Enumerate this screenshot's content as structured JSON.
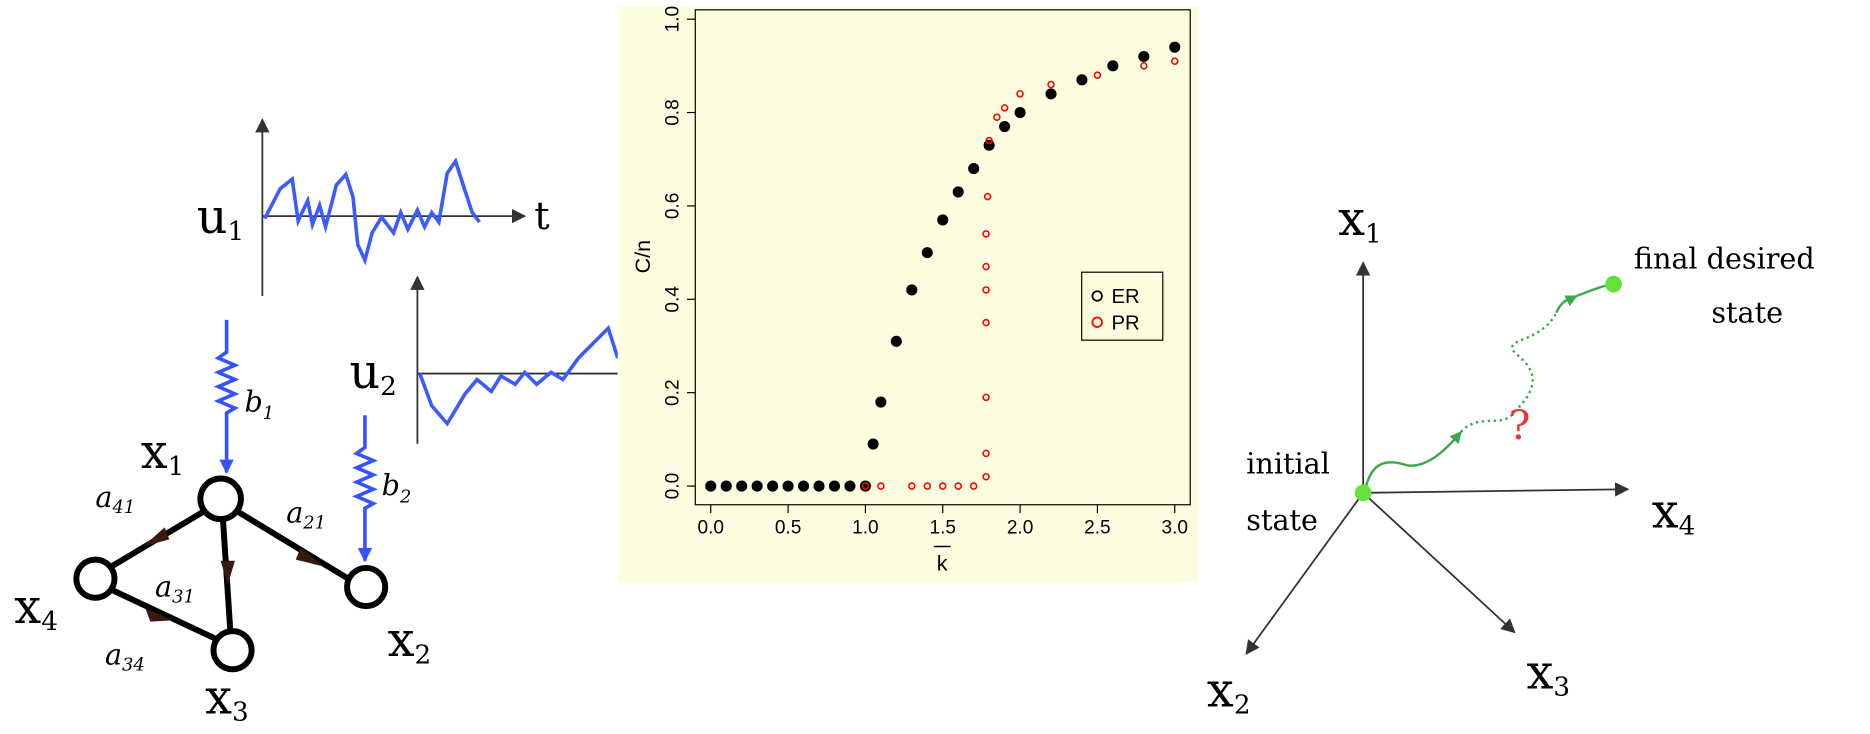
{
  "left_diagram": {
    "inputs": [
      {
        "var": "u",
        "sub": "1"
      },
      {
        "var": "u",
        "sub": "2"
      }
    ],
    "time_axis": "t",
    "couplings": [
      {
        "var": "b",
        "sub": "1"
      },
      {
        "var": "b",
        "sub": "2"
      }
    ],
    "nodes": [
      {
        "var": "x",
        "sub": "1"
      },
      {
        "var": "x",
        "sub": "2"
      },
      {
        "var": "x",
        "sub": "3"
      },
      {
        "var": "x",
        "sub": "4"
      }
    ],
    "edges": [
      {
        "var": "a",
        "sub": "41"
      },
      {
        "var": "a",
        "sub": "21"
      },
      {
        "var": "a",
        "sub": "31"
      },
      {
        "var": "a",
        "sub": "34"
      }
    ]
  },
  "chart_data": {
    "type": "scatter",
    "x_label": "k",
    "y_label": "C/n",
    "xlim": [
      -0.1,
      3.1
    ],
    "ylim": [
      -0.04,
      1.02
    ],
    "xticks": [
      {
        "value": 0,
        "label": "0.0"
      },
      {
        "value": 0.5,
        "label": "0.5"
      },
      {
        "value": 1,
        "label": "1.0"
      },
      {
        "value": 1.5,
        "label": "1.5"
      },
      {
        "value": 2,
        "label": "2.0"
      },
      {
        "value": 2.5,
        "label": "2.5"
      },
      {
        "value": 3,
        "label": "3.0"
      }
    ],
    "yticks": [
      {
        "value": 0,
        "label": "0.0"
      },
      {
        "value": 0.2,
        "label": "0.2"
      },
      {
        "value": 0.4,
        "label": "0.4"
      },
      {
        "value": 0.6,
        "label": "0.6"
      },
      {
        "value": 0.8,
        "label": "0.8"
      },
      {
        "value": 1,
        "label": "1.0"
      }
    ],
    "legend": "right",
    "series": [
      {
        "name": "ER",
        "color": "#000000",
        "x": [
          0,
          0.1,
          0.2,
          0.3,
          0.4,
          0.5,
          0.6,
          0.7,
          0.8,
          0.9,
          1.0,
          1.05,
          1.1,
          1.2,
          1.3,
          1.4,
          1.5,
          1.6,
          1.7,
          1.8,
          1.9,
          2.0,
          2.2,
          2.4,
          2.6,
          2.8,
          3.0
        ],
        "values": [
          0,
          0,
          0,
          0,
          0,
          0,
          0,
          0,
          0,
          0,
          0.0,
          0.09,
          0.18,
          0.31,
          0.42,
          0.5,
          0.57,
          0.63,
          0.68,
          0.73,
          0.77,
          0.8,
          0.84,
          0.87,
          0.9,
          0.92,
          0.94
        ]
      },
      {
        "name": "PR",
        "color": "#ff0000",
        "x": [
          1.0,
          1.1,
          1.3,
          1.4,
          1.5,
          1.6,
          1.7,
          1.78,
          1.78,
          1.78,
          1.78,
          1.78,
          1.78,
          1.78,
          1.79,
          1.8,
          1.85,
          1.9,
          2.0,
          2.2,
          2.5,
          2.8,
          3.0
        ],
        "values": [
          0,
          0,
          0,
          0,
          0,
          0,
          0,
          0.02,
          0.07,
          0.19,
          0.35,
          0.42,
          0.47,
          0.54,
          0.62,
          0.74,
          0.79,
          0.81,
          0.84,
          0.86,
          0.88,
          0.9,
          0.91
        ]
      }
    ]
  },
  "right_diagram": {
    "axes": [
      {
        "var": "x",
        "sub": "1"
      },
      {
        "var": "x",
        "sub": "4"
      },
      {
        "var": "x",
        "sub": "2"
      },
      {
        "var": "x",
        "sub": "3"
      }
    ],
    "initial": [
      "initial",
      "state"
    ],
    "final": [
      "final desired",
      "state"
    ],
    "question": "?"
  }
}
